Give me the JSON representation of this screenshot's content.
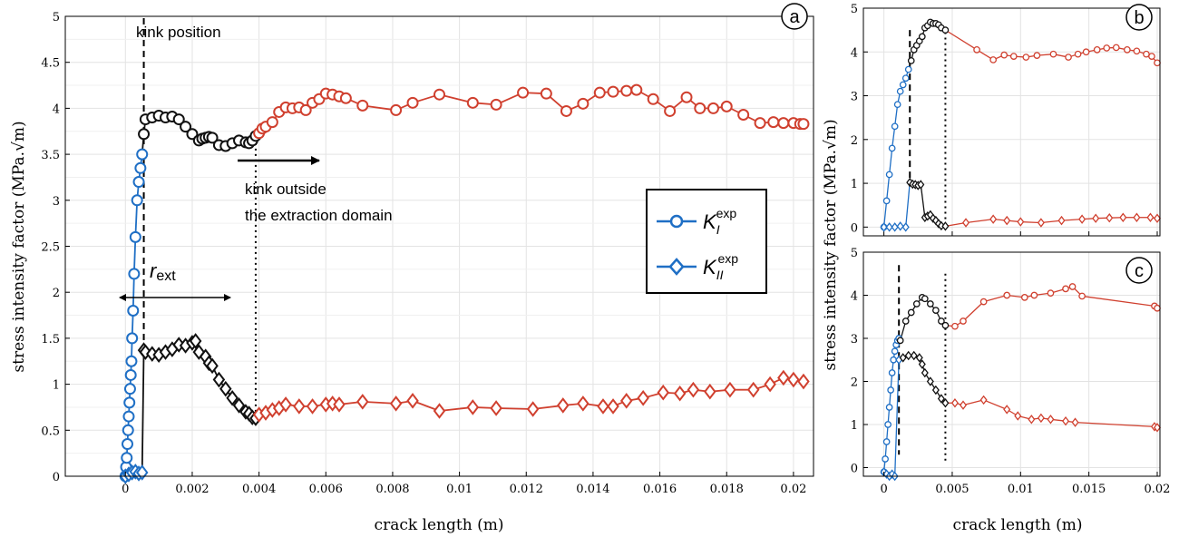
{
  "colors": {
    "blue": "#1f6fc5",
    "black": "#111111",
    "red": "#d0402f",
    "grid": "#e3e3e3"
  },
  "panels": {
    "a": {
      "label": "a",
      "ylabel": "stress intensity factor (MPa.√m)",
      "xlabel": "crack length (m)"
    },
    "b": {
      "label": "b",
      "ylabel": "stress intensity factor (MPa.√m)"
    },
    "c": {
      "label": "c",
      "xlabel": "crack length (m)"
    }
  },
  "annotations": {
    "kink_position": "kink position",
    "kink_outside_1": "kink outside",
    "kink_outside_2": "the extraction domain",
    "r_ext_main": "r",
    "r_ext_sub": "ext"
  },
  "legend": {
    "k1_main": "K",
    "k1_sub": "I",
    "k1_sup": "exp",
    "k2_main": "K",
    "k2_sub": "II",
    "k2_sup": "exp"
  },
  "chart_data": [
    {
      "panel": "a",
      "type": "line",
      "xlim": [
        -0.0018,
        0.0206
      ],
      "ylim": [
        0,
        5
      ],
      "xticks": [
        0,
        0.002,
        0.004,
        0.006,
        0.008,
        0.01,
        0.012,
        0.014,
        0.016,
        0.018,
        0.02
      ],
      "xtick_labels": [
        "0",
        "0.002",
        "0.004",
        "0.006",
        "0.008",
        "0.01",
        "0.012",
        "0.014",
        "0.016",
        "0.018",
        "0.02"
      ],
      "yticks": [
        0,
        0.5,
        1,
        1.5,
        2,
        2.5,
        3,
        3.5,
        4,
        4.5,
        5
      ],
      "ytick_labels": [
        "0",
        "0.5",
        "1",
        "1.5",
        "2",
        "2.5",
        "3",
        "3.5",
        "4",
        "4.5",
        "5"
      ],
      "grid": true,
      "legend_position": "center-right",
      "kink_x": 0.00055,
      "ext_x": 0.0039,
      "series": [
        {
          "name": "KI exp",
          "marker": "circle",
          "x": [
            0,
            2e-05,
            4e-05,
            6e-05,
            8e-05,
            0.0001,
            0.00012,
            0.00014,
            0.00016,
            0.00018,
            0.0002,
            0.00023,
            0.00026,
            0.0003,
            0.00035,
            0.0004,
            0.00045,
            0.0005,
            0.00055,
            0.0006,
            0.0008,
            0.001,
            0.0012,
            0.0014,
            0.0016,
            0.0018,
            0.002,
            0.0022,
            0.0023,
            0.0024,
            0.0025,
            0.0026,
            0.0028,
            0.003,
            0.0032,
            0.0034,
            0.0036,
            0.0037,
            0.0038,
            0.0039,
            0.004,
            0.0041,
            0.0042,
            0.0044,
            0.0046,
            0.0048,
            0.005,
            0.0052,
            0.0054,
            0.0056,
            0.0058,
            0.006,
            0.0062,
            0.0064,
            0.0066,
            0.0071,
            0.0081,
            0.0086,
            0.0094,
            0.0104,
            0.0111,
            0.0119,
            0.0126,
            0.0132,
            0.0137,
            0.0142,
            0.0146,
            0.015,
            0.0153,
            0.0158,
            0.0163,
            0.0168,
            0.0172,
            0.0176,
            0.018,
            0.0185,
            0.019,
            0.0194,
            0.0197,
            0.02,
            0.0202,
            0.0203
          ],
          "y": [
            0,
            0.1,
            0.2,
            0.35,
            0.5,
            0.65,
            0.8,
            0.95,
            1.1,
            1.25,
            1.5,
            1.8,
            2.2,
            2.6,
            3.0,
            3.2,
            3.35,
            3.5,
            3.72,
            3.88,
            3.9,
            3.92,
            3.9,
            3.91,
            3.88,
            3.8,
            3.72,
            3.65,
            3.67,
            3.68,
            3.69,
            3.68,
            3.6,
            3.59,
            3.62,
            3.65,
            3.63,
            3.62,
            3.65,
            3.7,
            3.73,
            3.78,
            3.8,
            3.85,
            3.96,
            4.01,
            4.0,
            4.01,
            3.98,
            4.06,
            4.1,
            4.16,
            4.15,
            4.13,
            4.11,
            4.03,
            3.98,
            4.06,
            4.15,
            4.06,
            4.04,
            4.17,
            4.16,
            3.97,
            4.05,
            4.17,
            4.18,
            4.19,
            4.2,
            4.1,
            3.97,
            4.12,
            4.0,
            4.0,
            4.02,
            3.93,
            3.84,
            3.85,
            3.84,
            3.84,
            3.83,
            3.83
          ],
          "segment_colors": "blue until x=0.0005, black until x=0.0039, red after"
        },
        {
          "name": "KII exp",
          "marker": "diamond",
          "x": [
            0,
            0.0001,
            0.0002,
            0.0003,
            0.0004,
            0.0005,
            0.00055,
            0.0006,
            0.0008,
            0.001,
            0.0012,
            0.0014,
            0.0016,
            0.0018,
            0.002,
            0.0021,
            0.0022,
            0.0024,
            0.0025,
            0.0026,
            0.0028,
            0.003,
            0.0032,
            0.0034,
            0.0036,
            0.0037,
            0.0038,
            0.0039,
            0.004,
            0.0042,
            0.0044,
            0.0046,
            0.0048,
            0.0052,
            0.0056,
            0.006,
            0.0062,
            0.0064,
            0.0071,
            0.0081,
            0.0086,
            0.0094,
            0.0104,
            0.0111,
            0.0122,
            0.0131,
            0.0137,
            0.0143,
            0.0146,
            0.015,
            0.0155,
            0.0161,
            0.0166,
            0.017,
            0.0175,
            0.0181,
            0.0188,
            0.0193,
            0.0197,
            0.02,
            0.0203
          ],
          "y": [
            0,
            0.02,
            0.04,
            0.05,
            0.03,
            0.04,
            1.37,
            1.35,
            1.33,
            1.32,
            1.35,
            1.38,
            1.43,
            1.42,
            1.45,
            1.47,
            1.35,
            1.3,
            1.23,
            1.2,
            1.05,
            0.95,
            0.85,
            0.77,
            0.7,
            0.68,
            0.64,
            0.63,
            0.67,
            0.69,
            0.72,
            0.74,
            0.78,
            0.76,
            0.76,
            0.78,
            0.79,
            0.78,
            0.81,
            0.79,
            0.82,
            0.71,
            0.75,
            0.74,
            0.73,
            0.77,
            0.79,
            0.76,
            0.76,
            0.82,
            0.85,
            0.91,
            0.9,
            0.94,
            0.92,
            0.94,
            0.94,
            1.0,
            1.07,
            1.05,
            1.03
          ],
          "segment_colors": "blue until x=0.0005, black until x=0.0039, red after"
        }
      ]
    },
    {
      "panel": "b",
      "type": "line",
      "xlim": [
        -0.0015,
        0.0202
      ],
      "ylim": [
        -0.2,
        5
      ],
      "yticks": [
        0,
        1,
        2,
        3,
        4,
        5
      ],
      "ytick_labels": [
        "0",
        "1",
        "2",
        "3",
        "4",
        "5"
      ],
      "grid": true,
      "kink_x": 0.0019,
      "ext_x": 0.0045,
      "series": [
        {
          "name": "KI exp",
          "marker": "circle",
          "x": [
            0,
            0.0002,
            0.0004,
            0.0006,
            0.0008,
            0.001,
            0.0012,
            0.0014,
            0.0016,
            0.0018,
            0.002,
            0.0022,
            0.0024,
            0.0026,
            0.0028,
            0.003,
            0.0032,
            0.0034,
            0.0036,
            0.0038,
            0.004,
            0.0042,
            0.0045,
            0.0068,
            0.008,
            0.0088,
            0.0095,
            0.0104,
            0.0112,
            0.0124,
            0.0135,
            0.0142,
            0.0148,
            0.0156,
            0.0163,
            0.017,
            0.0178,
            0.0185,
            0.0192,
            0.0196,
            0.02
          ],
          "y": [
            0.0,
            0.6,
            1.2,
            1.8,
            2.3,
            2.8,
            3.1,
            3.25,
            3.4,
            3.6,
            3.8,
            4.05,
            4.15,
            4.25,
            4.35,
            4.55,
            4.6,
            4.68,
            4.65,
            4.65,
            4.62,
            4.55,
            4.5,
            4.05,
            3.82,
            3.93,
            3.9,
            3.88,
            3.92,
            3.95,
            3.88,
            3.95,
            4.0,
            4.05,
            4.09,
            4.1,
            4.05,
            4.02,
            3.95,
            3.9,
            3.75
          ],
          "segment_colors": "blue until x=0.0018, black until x=0.0045, red after"
        },
        {
          "name": "KII exp",
          "marker": "diamond",
          "x": [
            0,
            0.0004,
            0.0008,
            0.0012,
            0.0016,
            0.0019,
            0.0021,
            0.0023,
            0.0025,
            0.0027,
            0.003,
            0.0032,
            0.0034,
            0.0036,
            0.0038,
            0.004,
            0.0042,
            0.0045,
            0.006,
            0.008,
            0.009,
            0.01,
            0.0115,
            0.013,
            0.0145,
            0.0155,
            0.0165,
            0.0175,
            0.0185,
            0.0195,
            0.02
          ],
          "y": [
            0.0,
            0.0,
            0.0,
            0.02,
            0.0,
            1.02,
            0.98,
            0.97,
            0.95,
            0.97,
            0.22,
            0.25,
            0.28,
            0.2,
            0.15,
            0.08,
            0.03,
            0.02,
            0.1,
            0.18,
            0.15,
            0.12,
            0.1,
            0.15,
            0.18,
            0.2,
            0.21,
            0.22,
            0.22,
            0.22,
            0.2
          ],
          "segment_colors": "blue until x=0.0018, black until x=0.0045, red after"
        }
      ]
    },
    {
      "panel": "c",
      "type": "line",
      "xlim": [
        -0.0015,
        0.0202
      ],
      "ylim": [
        -0.2,
        5
      ],
      "xticks": [
        0,
        0.005,
        0.01,
        0.015,
        0.02
      ],
      "xtick_labels": [
        "0",
        "0.005",
        "0.01",
        "0.015",
        "0.02"
      ],
      "yticks": [
        0,
        1,
        2,
        3,
        4,
        5
      ],
      "ytick_labels": [
        "0",
        "1",
        "2",
        "3",
        "4",
        "5"
      ],
      "grid": true,
      "kink_x": 0.0011,
      "ext_x": 0.0045,
      "series": [
        {
          "name": "KI exp",
          "marker": "circle",
          "x": [
            0,
            0.0001,
            0.0002,
            0.0003,
            0.0004,
            0.0005,
            0.0006,
            0.0007,
            0.0008,
            0.0009,
            0.001,
            0.0011,
            0.0012,
            0.0016,
            0.002,
            0.0024,
            0.0028,
            0.003,
            0.0034,
            0.0038,
            0.0042,
            0.0045,
            0.0052,
            0.0058,
            0.0073,
            0.009,
            0.0103,
            0.011,
            0.0122,
            0.0133,
            0.0138,
            0.0145,
            0.0198,
            0.02
          ],
          "y": [
            -0.1,
            0.2,
            0.6,
            1.0,
            1.4,
            1.8,
            2.2,
            2.5,
            2.7,
            2.85,
            2.95,
            3.0,
            2.95,
            3.4,
            3.6,
            3.8,
            3.95,
            3.92,
            3.8,
            3.65,
            3.4,
            3.3,
            3.28,
            3.4,
            3.85,
            4.0,
            3.95,
            4.0,
            4.05,
            4.15,
            4.2,
            3.98,
            3.75,
            3.7
          ],
          "segment_colors": "blue until x=0.0011, black until x=0.0045, red after"
        },
        {
          "name": "KII exp",
          "marker": "diamond",
          "x": [
            0,
            0.0002,
            0.0004,
            0.0006,
            0.0008,
            0.0011,
            0.0014,
            0.0018,
            0.0022,
            0.0026,
            0.0028,
            0.003,
            0.0034,
            0.0038,
            0.0042,
            0.0045,
            0.0052,
            0.0058,
            0.0073,
            0.009,
            0.0098,
            0.0108,
            0.0115,
            0.0122,
            0.0133,
            0.014,
            0.0198,
            0.02
          ],
          "y": [
            -0.1,
            -0.15,
            -0.2,
            -0.15,
            -0.2,
            2.5,
            2.55,
            2.6,
            2.6,
            2.55,
            2.4,
            2.2,
            2.0,
            1.8,
            1.6,
            1.5,
            1.5,
            1.45,
            1.57,
            1.35,
            1.2,
            1.12,
            1.15,
            1.12,
            1.08,
            1.05,
            0.95,
            0.93
          ],
          "segment_colors": "blue until x=0.0011, black until x=0.0045, red after"
        }
      ]
    }
  ]
}
